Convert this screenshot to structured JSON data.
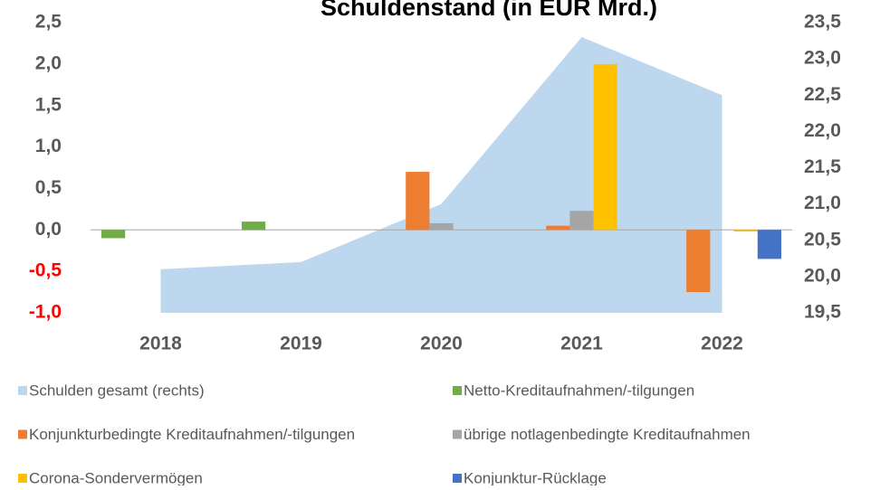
{
  "chart_data": {
    "type": "bar",
    "title": "Schuldenstand (in EUR Mrd.)",
    "categories": [
      "2018",
      "2019",
      "2020",
      "2021",
      "2022"
    ],
    "ylim": [
      -1.0,
      2.5
    ],
    "yticks": [
      {
        "value": -1.0,
        "label": "-1,0"
      },
      {
        "value": -0.5,
        "label": "-0,5"
      },
      {
        "value": 0.0,
        "label": "0,0"
      },
      {
        "value": 0.5,
        "label": "0,5"
      },
      {
        "value": 1.0,
        "label": "1,0"
      },
      {
        "value": 1.5,
        "label": "1,5"
      },
      {
        "value": 2.0,
        "label": "2,0"
      },
      {
        "value": 2.5,
        "label": "2,5"
      }
    ],
    "y2lim": [
      19.5,
      23.5
    ],
    "y2ticks": [
      {
        "value": 19.5,
        "label": "19,5"
      },
      {
        "value": 20.0,
        "label": "20,0"
      },
      {
        "value": 20.5,
        "label": "20,5"
      },
      {
        "value": 21.0,
        "label": "21,0"
      },
      {
        "value": 21.5,
        "label": "21,5"
      },
      {
        "value": 22.0,
        "label": "22,0"
      },
      {
        "value": 22.5,
        "label": "22,5"
      },
      {
        "value": 23.0,
        "label": "23,0"
      },
      {
        "value": 23.5,
        "label": "23,5"
      }
    ],
    "negative_tick_color": "#ff0000",
    "series": [
      {
        "name": "Schulden gesamt (rechts)",
        "type": "area",
        "axis": "y2",
        "color": "#bdd7ee",
        "values": [
          20.1,
          20.2,
          21.0,
          23.3,
          22.5
        ]
      },
      {
        "name": "Netto-Kreditaufnahmen/-tilgungen",
        "color": "#70ad47",
        "values": [
          -0.1,
          0.1,
          null,
          null,
          null
        ]
      },
      {
        "name": "Konjunkturbedingte Kreditaufnahmen/-tilgungen",
        "color": "#ed7d31",
        "values": [
          null,
          null,
          0.7,
          0.05,
          -0.75
        ]
      },
      {
        "name": "übrige notlagenbedingte Kreditaufnahmen",
        "color": "#a5a5a5",
        "values": [
          null,
          null,
          0.08,
          0.23,
          null
        ]
      },
      {
        "name": "Corona-Sondervermögen",
        "color": "#ffc000",
        "values": [
          null,
          null,
          null,
          2.0,
          -0.02
        ]
      },
      {
        "name": "Konjunktur-Rücklage",
        "color": "#4472c4",
        "values": [
          null,
          null,
          null,
          null,
          -0.35
        ]
      }
    ]
  }
}
